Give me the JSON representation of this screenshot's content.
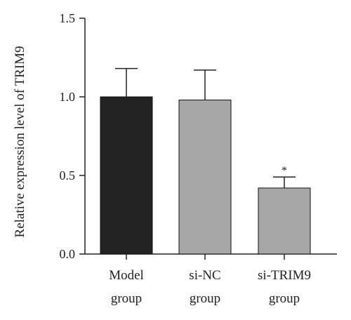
{
  "chart_data": {
    "type": "bar",
    "categories": [
      [
        "Model",
        "group"
      ],
      [
        "si-NC",
        "group"
      ],
      [
        "si-TRIM9",
        "group"
      ]
    ],
    "values": [
      1.0,
      0.98,
      0.42
    ],
    "errors": [
      0.18,
      0.19,
      0.07
    ],
    "bar_colors": [
      "#222222",
      "#a6a6a6",
      "#a6a6a6"
    ],
    "significance": [
      "",
      "",
      "*"
    ],
    "ylabel": "Relative expression level of TRIM9",
    "xlabel": "",
    "title": "",
    "ylim": [
      0.0,
      1.5
    ],
    "yticks": [
      "0.0",
      "0.5",
      "1.0",
      "1.5"
    ],
    "grid": false,
    "legend": "none"
  }
}
